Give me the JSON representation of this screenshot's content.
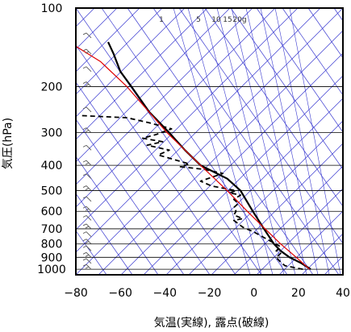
{
  "chart_data": {
    "type": "line",
    "title": "",
    "xlabel": "気温(実線), 露点(破線)",
    "ylabel": "気圧(hPa)",
    "xlim": [
      -80,
      40
    ],
    "ylim": [
      1050,
      100
    ],
    "y_scale": "log",
    "x_ticks": [
      -80,
      -60,
      -40,
      -20,
      0,
      20,
      40
    ],
    "x_tick_labels": [
      "−80",
      "−60",
      "−40",
      "−20",
      "0",
      "20",
      "40"
    ],
    "y_ticks": [
      100,
      200,
      300,
      400,
      500,
      600,
      700,
      800,
      900,
      1000
    ],
    "y_tick_labels": [
      "100",
      "200",
      "300",
      "400",
      "500",
      "600",
      "700",
      "800",
      "900",
      "1000"
    ],
    "grid": true,
    "mixing_ratio_labels": [
      "1",
      "5",
      "10",
      "15",
      "20g"
    ],
    "colors": {
      "isotherm": "#3a3ad0",
      "gridline": "#000000",
      "temperature": "#000000",
      "dewpoint": "#000000",
      "parcel": "#e00000",
      "barb": "#555555"
    },
    "series": [
      {
        "style": "solid",
        "points": [
          [
            25.5,
            1000
          ],
          [
            21.5,
            950
          ],
          [
            16,
            900
          ],
          [
            12,
            850
          ],
          [
            9,
            800
          ],
          [
            4.5,
            700
          ],
          [
            -0.5,
            600
          ],
          [
            -6,
            500
          ],
          [
            -12,
            450
          ],
          [
            -24,
            400
          ],
          [
            -31,
            350
          ],
          [
            -38,
            300
          ],
          [
            -47,
            250
          ],
          [
            -55,
            200
          ],
          [
            -60,
            175
          ],
          [
            -63,
            150
          ],
          [
            -65.5,
            135
          ]
        ]
      },
      {
        "style": "dashed",
        "points": [
          [
            22,
            1000
          ],
          [
            14,
            970
          ],
          [
            12,
            940
          ],
          [
            10,
            900
          ],
          [
            12,
            870
          ],
          [
            10,
            850
          ],
          [
            12,
            820
          ],
          [
            5,
            760
          ],
          [
            0,
            720
          ],
          [
            -5,
            690
          ],
          [
            -9,
            650
          ],
          [
            -5,
            640
          ],
          [
            -9,
            620
          ],
          [
            -8,
            600
          ],
          [
            -9,
            580
          ],
          [
            -7,
            560
          ],
          [
            -9,
            540
          ],
          [
            -6,
            520
          ],
          [
            -11,
            510
          ],
          [
            -8,
            500
          ],
          [
            -19,
            480
          ],
          [
            -24,
            460
          ],
          [
            -14,
            430
          ],
          [
            -22,
            415
          ],
          [
            -33,
            405
          ],
          [
            -29,
            395
          ],
          [
            -36,
            380
          ],
          [
            -43,
            365
          ],
          [
            -38,
            350
          ],
          [
            -48,
            335
          ],
          [
            -41,
            325
          ],
          [
            -50,
            315
          ],
          [
            -44,
            305
          ],
          [
            -37,
            290
          ],
          [
            -47,
            275
          ],
          [
            -57,
            263
          ],
          [
            -78,
            258
          ]
        ]
      },
      {
        "style": "solid",
        "points": [
          [
            25,
            1000
          ],
          [
            19,
            900
          ],
          [
            12,
            800
          ],
          [
            5,
            700
          ],
          [
            -3,
            600
          ],
          [
            -12,
            500
          ],
          [
            -24,
            400
          ],
          [
            -39,
            300
          ],
          [
            -57,
            200
          ],
          [
            -69,
            160
          ],
          [
            -80,
            140
          ]
        ]
      }
    ],
    "wind_barbs_pressures": [
      1000,
      950,
      900,
      850,
      800,
      750,
      700,
      650,
      600,
      550,
      500,
      450,
      400,
      350,
      300,
      250,
      200,
      175,
      150,
      130
    ]
  }
}
